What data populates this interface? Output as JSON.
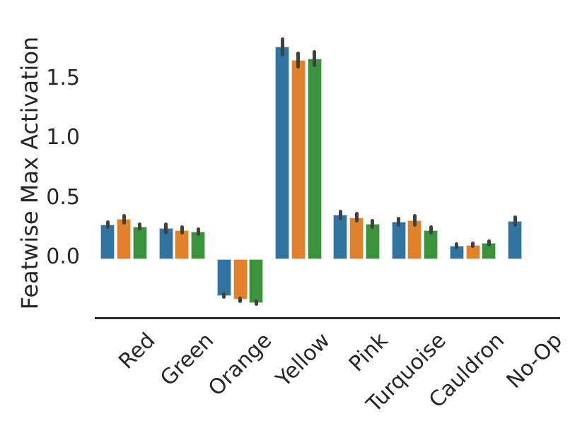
{
  "figure": {
    "background": "#ffffff"
  },
  "chart_data": {
    "type": "bar",
    "title": "",
    "xlabel": "",
    "ylabel": "Featwise Max Activation",
    "categories": [
      "Red",
      "Green",
      "Orange",
      "Yellow",
      "Pink",
      "Turquoise",
      "Cauldron",
      "No-Op"
    ],
    "series": [
      {
        "name": "series-blue",
        "color": "#3274a1",
        "values": [
          0.29,
          0.26,
          -0.305,
          1.78,
          0.37,
          0.315,
          0.11,
          0.32
        ],
        "errors": [
          0.035,
          0.05,
          0.025,
          0.08,
          0.045,
          0.04,
          0.03,
          0.045
        ]
      },
      {
        "name": "series-orange",
        "color": "#e1812c",
        "values": [
          0.335,
          0.245,
          -0.34,
          1.67,
          0.35,
          0.325,
          0.12,
          null
        ],
        "errors": [
          0.045,
          0.04,
          0.025,
          0.07,
          0.045,
          0.055,
          0.025,
          null
        ]
      },
      {
        "name": "series-green",
        "color": "#3a923a",
        "values": [
          0.275,
          0.23,
          -0.365,
          1.68,
          0.295,
          0.245,
          0.135,
          null
        ],
        "errors": [
          0.035,
          0.035,
          0.025,
          0.07,
          0.04,
          0.04,
          0.03,
          null
        ]
      }
    ],
    "yticks": [
      "0.0",
      "0.5",
      "1.0",
      "1.5"
    ],
    "ytick_values": [
      0.0,
      0.5,
      1.0,
      1.5
    ],
    "ylim": [
      -0.49,
      1.95
    ],
    "grid": false,
    "legend": null,
    "error_bar_color": "#404040",
    "axis_color": "#2d2d2d",
    "tick_label_color": "#262626"
  }
}
